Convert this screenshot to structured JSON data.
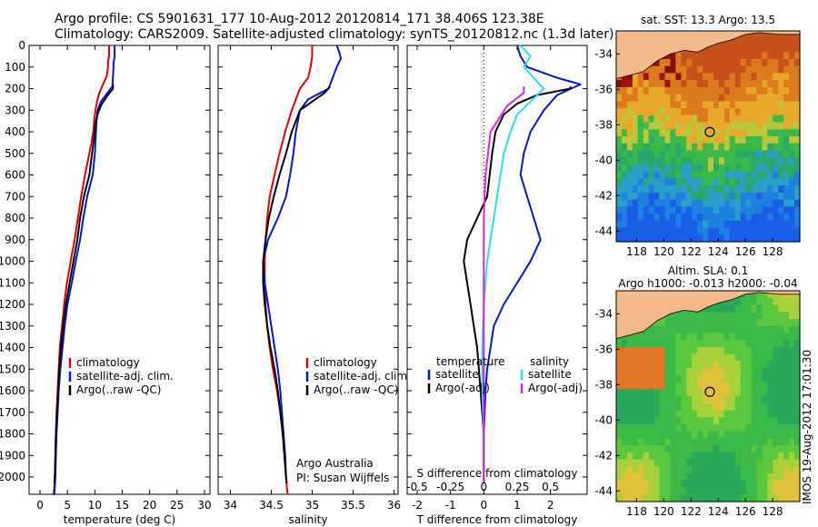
{
  "header": {
    "line1": "Argo profile: CS 5901631_177 10-Aug-2012 20120814_171 38.406S 123.38E",
    "line2": "Climatology: CARS2009. Satellite-adjusted climatology: synTS_20120812.nc (1.3d later)"
  },
  "colors": {
    "climatology": "#e00000",
    "satellite": "#0018c8",
    "argo": "#000000",
    "satellite_s": "#28e0e8",
    "argo_s": "#e020e0",
    "land": "#f4b98a"
  },
  "chart_data": [
    {
      "type": "line",
      "name": "temperature-panel",
      "xlabel": "temperature (deg C)",
      "xlim": [
        -2,
        31
      ],
      "xticks": [
        0,
        5,
        10,
        15,
        20,
        25,
        30
      ],
      "ylim": [
        0,
        2080
      ],
      "yticks": [
        0,
        100,
        200,
        300,
        400,
        500,
        600,
        700,
        800,
        900,
        1000,
        1100,
        1200,
        1300,
        1400,
        1500,
        1600,
        1700,
        1800,
        1900,
        2000
      ],
      "legend": [
        "climatology",
        "satellite-adj. clim.",
        "Argo(..raw -QC)"
      ],
      "series": [
        {
          "name": "climatology",
          "x": [
            12.6,
            12.6,
            12.4,
            12.4,
            12.2,
            11.5,
            10.8,
            10.4,
            10.1,
            9.9,
            9.7,
            9.4,
            9.0,
            8.2,
            7.5,
            6.9,
            6.3,
            5.6,
            4.9,
            4.4,
            4.0,
            3.6,
            3.4,
            3.2,
            3.0,
            2.9,
            2.8,
            2.7,
            2.6,
            2.5,
            2.4
          ],
          "y": [
            0,
            50,
            80,
            100,
            140,
            180,
            220,
            260,
            300,
            340,
            400,
            450,
            500,
            600,
            700,
            800,
            900,
            1000,
            1100,
            1200,
            1300,
            1400,
            1500,
            1600,
            1700,
            1800,
            1900,
            2000,
            2050,
            2080,
            2080
          ]
        },
        {
          "name": "satellite-adj. clim.",
          "x": [
            13.6,
            13.6,
            13.4,
            13.4,
            13.2,
            12.0,
            11.1,
            10.5,
            10.3,
            10.2,
            10.1,
            10.0,
            9.6,
            8.6,
            7.9,
            7.3,
            6.5,
            5.8,
            5.0,
            4.5,
            4.1,
            3.7,
            3.4,
            3.2,
            3.0,
            2.9,
            2.8,
            2.7,
            2.6,
            2.5
          ],
          "y": [
            0,
            50,
            80,
            100,
            190,
            230,
            260,
            300,
            350,
            400,
            450,
            500,
            600,
            700,
            800,
            900,
            1000,
            1100,
            1200,
            1300,
            1400,
            1500,
            1600,
            1700,
            1800,
            1900,
            2000,
            2050,
            2080,
            2080
          ]
        },
        {
          "name": "Argo(..raw -QC)",
          "x": [
            13.3,
            13.3,
            12.4,
            11.3,
            10.6,
            10.1,
            9.9,
            9.5,
            9.0,
            8.0,
            7.3,
            6.8,
            6.1,
            5.4,
            4.7,
            4.2,
            3.8,
            3.5,
            3.3,
            3.1,
            2.9,
            2.8,
            2.7,
            2.6
          ],
          "y": [
            180,
            200,
            230,
            270,
            310,
            360,
            420,
            500,
            600,
            700,
            800,
            900,
            1000,
            1100,
            1200,
            1300,
            1400,
            1500,
            1600,
            1700,
            1800,
            1900,
            2000,
            2030
          ]
        }
      ]
    },
    {
      "type": "line",
      "name": "salinity-panel",
      "xlabel": "salinity",
      "xlim": [
        33.85,
        36.05
      ],
      "xticks": [
        34,
        34.5,
        35,
        35.5,
        36
      ],
      "xticklabels": [
        "34",
        "34.5",
        "35",
        "35.5",
        "36"
      ],
      "ylim": [
        0,
        2080
      ],
      "legend": [
        "climatology",
        "satellite-adj. clim.",
        "Argo(..raw -QC)"
      ],
      "annotation": [
        "Argo Australia",
        "PI: Susan Wijffels"
      ],
      "series": [
        {
          "name": "climatology",
          "x": [
            35.0,
            35.0,
            34.98,
            34.95,
            34.85,
            34.75,
            34.67,
            34.6,
            34.54,
            34.48,
            34.45,
            34.43,
            34.42,
            34.42,
            34.43,
            34.45,
            34.48,
            34.52,
            34.57,
            34.61,
            34.64,
            34.66,
            34.68,
            34.69,
            34.7
          ],
          "y": [
            0,
            50,
            100,
            150,
            200,
            300,
            400,
            500,
            600,
            700,
            800,
            900,
            1000,
            1100,
            1200,
            1300,
            1400,
            1500,
            1600,
            1700,
            1800,
            1900,
            2000,
            2050,
            2080
          ]
        },
        {
          "name": "satellite-adj. clim.",
          "x": [
            35.3,
            35.33,
            35.35,
            35.3,
            35.25,
            35.2,
            34.95,
            34.85,
            34.8,
            34.77,
            34.73,
            34.68,
            34.58,
            34.46,
            34.4,
            34.42,
            34.46,
            34.5,
            34.54,
            34.58,
            34.61,
            34.63,
            34.65,
            34.67,
            34.68
          ],
          "y": [
            0,
            30,
            60,
            100,
            150,
            200,
            250,
            300,
            400,
            500,
            600,
            700,
            800,
            900,
            1000,
            1100,
            1200,
            1300,
            1400,
            1500,
            1600,
            1700,
            1800,
            1900,
            2000
          ]
        },
        {
          "name": "Argo(..raw -QC)",
          "x": [
            35.22,
            35.15,
            35.0,
            34.85,
            34.75,
            34.68,
            34.6,
            34.53,
            34.47,
            34.43,
            34.4,
            34.4,
            34.42,
            34.45,
            34.49,
            34.54,
            34.58,
            34.61,
            34.64,
            34.66,
            34.68,
            34.69
          ],
          "y": [
            190,
            220,
            260,
            300,
            400,
            500,
            600,
            700,
            800,
            900,
            1000,
            1100,
            1200,
            1300,
            1400,
            1500,
            1600,
            1700,
            1800,
            1900,
            2000,
            2030
          ]
        }
      ]
    },
    {
      "type": "line",
      "name": "difference-panel",
      "xlabel_bottom": "T difference from climatology",
      "xlabel_top": "S difference from climatology",
      "xlim": [
        -2.3,
        3.1
      ],
      "xticks": [
        -2,
        -1,
        0,
        1,
        2
      ],
      "sticks_labels": [
        "-0.5",
        "-0.25",
        "0",
        "0.25",
        "0.5"
      ],
      "sticks_positions": [
        -2,
        -1,
        0,
        1,
        2
      ],
      "ylim": [
        0,
        2080
      ],
      "legend": {
        "temperature_header": "temperature",
        "salinity_header": "salinity",
        "temperature_items": [
          "satellite",
          "Argo(-adj)"
        ],
        "salinity_items": [
          "satellite",
          "Argo(-adj)"
        ]
      },
      "series": [
        {
          "name": "satellite",
          "group": "temperature",
          "x": [
            1.0,
            1.1,
            1.3,
            2.2,
            2.9,
            2.2,
            1.8,
            1.4,
            1.2,
            1.1,
            1.3,
            1.5,
            1.7,
            1.4,
            1.0,
            0.6,
            0.3,
            0.2,
            0.1,
            0.05,
            0.0,
            0.0
          ],
          "y": [
            0,
            50,
            100,
            150,
            180,
            230,
            300,
            400,
            500,
            600,
            700,
            800,
            900,
            1000,
            1100,
            1200,
            1300,
            1400,
            1500,
            1600,
            1800,
            2000
          ]
        },
        {
          "name": "Argo(-adj)",
          "group": "temperature",
          "x": [
            2.6,
            2.6,
            1.6,
            1.0,
            0.6,
            0.35,
            0.25,
            0.1,
            -0.2,
            -0.5,
            -0.6,
            -0.5,
            -0.4,
            -0.3,
            -0.2,
            -0.1,
            0.0,
            0.0
          ],
          "y": [
            190,
            200,
            230,
            270,
            320,
            400,
            500,
            700,
            800,
            900,
            1000,
            1100,
            1200,
            1300,
            1400,
            1600,
            1800,
            2030
          ]
        },
        {
          "name": "satellite",
          "group": "salinity",
          "x": [
            1.1,
            1.4,
            1.2,
            1.8,
            1.4,
            1.0,
            0.8,
            0.6,
            0.5,
            0.3,
            0.1,
            0.0,
            -0.05,
            -0.05,
            0.0,
            0.0
          ],
          "y": [
            0,
            50,
            100,
            200,
            260,
            320,
            400,
            500,
            600,
            800,
            1000,
            1200,
            1400,
            1600,
            1800,
            2000
          ]
        },
        {
          "name": "Argo(-adj)",
          "group": "salinity",
          "x": [
            1.2,
            1.2,
            0.7,
            0.2,
            0.05,
            0.0,
            0.0,
            0.0,
            0.0
          ],
          "y": [
            190,
            220,
            280,
            400,
            600,
            800,
            1200,
            1600,
            2030
          ]
        }
      ]
    },
    {
      "type": "heatmap",
      "name": "sst-map",
      "title": "sat. SST: 13.3  Argo: 13.5",
      "xticks": [
        118,
        120,
        122,
        124,
        126,
        128
      ],
      "yticks": [
        -34,
        -36,
        -38,
        -40,
        -42,
        -44
      ],
      "xlim": [
        116.5,
        130
      ],
      "ylim": [
        -44.6,
        -32.7
      ],
      "marker": {
        "lon": 123.38,
        "lat": -38.406
      }
    },
    {
      "type": "heatmap",
      "name": "sla-map",
      "title": [
        "Altim. SLA: 0.1",
        "Argo h1000: -0.013 h2000: -0.04"
      ],
      "xticks": [
        118,
        120,
        122,
        124,
        126,
        128
      ],
      "yticks": [
        -34,
        -36,
        -38,
        -40,
        -42,
        -44
      ],
      "xlim": [
        116.5,
        130
      ],
      "ylim": [
        -44.6,
        -32.7
      ],
      "marker": {
        "lon": 123.38,
        "lat": -38.406
      }
    }
  ],
  "side_text": "IMOS 19-Aug-2012 17:01:30"
}
